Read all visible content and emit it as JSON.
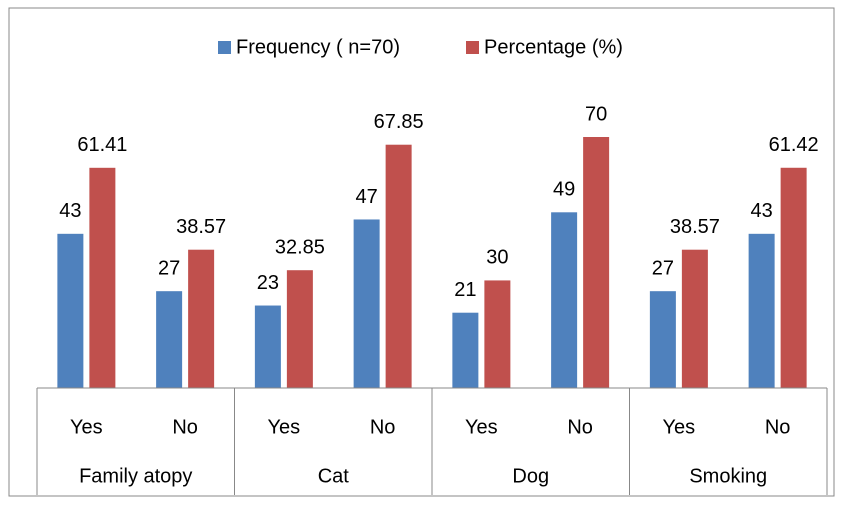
{
  "chart_data": {
    "type": "bar",
    "categories": [
      "Yes",
      "No",
      "Yes",
      "No",
      "Yes",
      "No",
      "Yes",
      "No"
    ],
    "groups": [
      "Family atopy",
      "Cat",
      "Dog",
      "Smoking"
    ],
    "series": [
      {
        "name": "Frequency ( n=70)",
        "color": "#4f81bd",
        "values": [
          43,
          27,
          23,
          47,
          21,
          49,
          27,
          43
        ]
      },
      {
        "name": "Percentage (%)",
        "color": "#c0504d",
        "values": [
          61.41,
          38.57,
          32.85,
          67.85,
          30,
          70,
          38.57,
          61.42
        ]
      }
    ],
    "ylim": [
      0,
      70
    ],
    "legend": "top"
  }
}
